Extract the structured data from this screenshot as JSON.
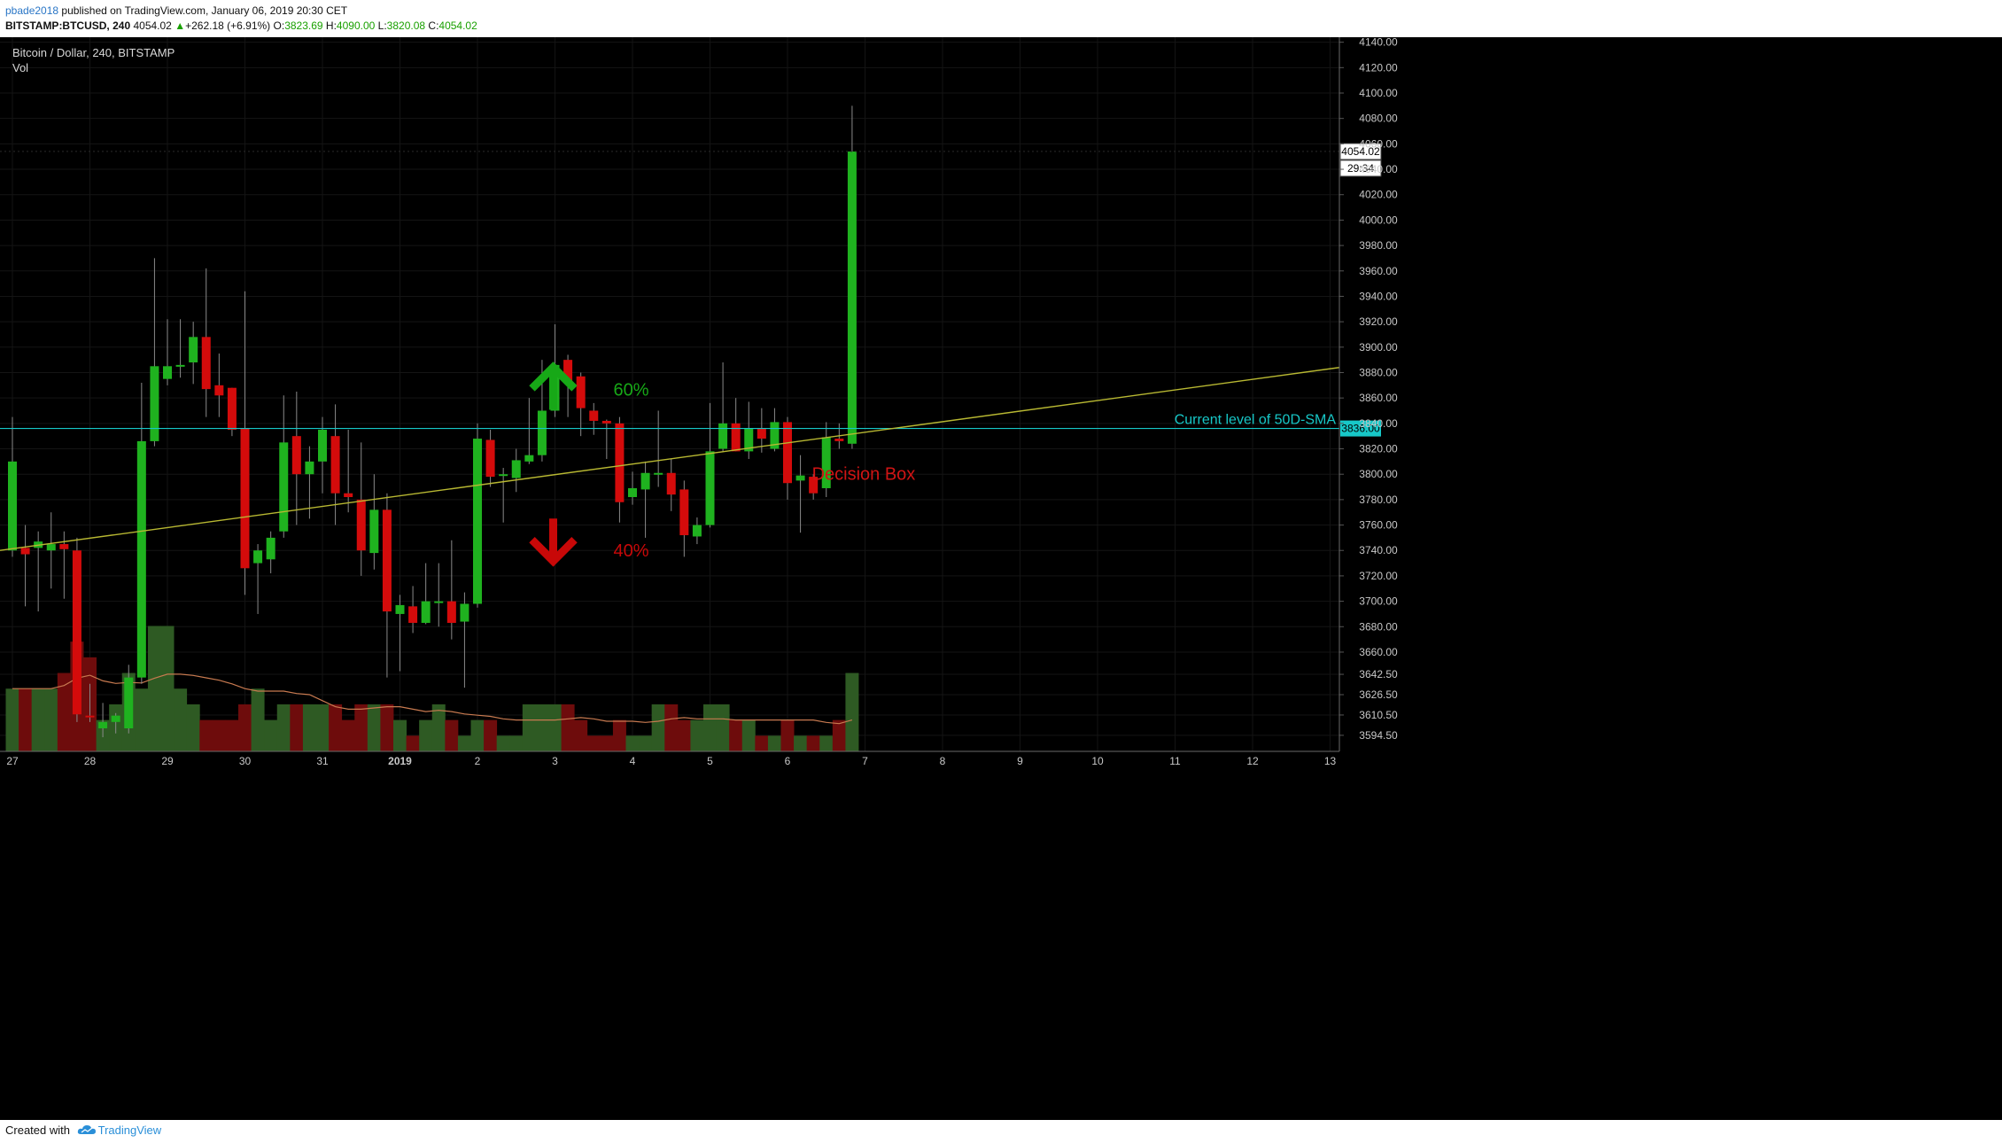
{
  "header": {
    "author": "pbade2018",
    "published_text": "published on TradingView.com, January 06, 2019 20:30 CET",
    "symbol": "BITSTAMP:BTCUSD, 240",
    "last_price": "4054.02",
    "change_arrow": "▲",
    "change": "+262.18 (+6.91%)",
    "o_label": "O:",
    "o_value": "3823.69",
    "h_label": "H:",
    "h_value": "4090.00",
    "l_label": "L:",
    "l_value": "3820.08",
    "c_label": "C:",
    "c_value": "4054.02"
  },
  "legend": {
    "title": "Bitcoin / Dollar, 240, BITSTAMP",
    "volume_label": "Vol"
  },
  "footer": {
    "created_with": "Created with",
    "brand": "TradingView",
    "logo_icon": "tradingview-cloud-icon"
  },
  "colors": {
    "background": "#000000",
    "up": "#1fb21f",
    "down": "#d40b0b",
    "vol_up": "#2e5a23",
    "vol_down": "#6e0c0c",
    "sma_line": "#17c8c8",
    "trend_line": "#b8b832",
    "vol_ma": "#c87a50",
    "axis_text": "#c8c8c8",
    "arrow_up": "#17a817",
    "arrow_down": "#c80808"
  },
  "chart_data": {
    "type": "candlestick",
    "title": "Bitcoin / Dollar, 240, BITSTAMP",
    "interval": "240",
    "y_ticks": [
      3594.5,
      3610.5,
      3626.5,
      3642.5,
      3660.0,
      3680.0,
      3700.0,
      3720.0,
      3740.0,
      3760.0,
      3780.0,
      3800.0,
      3820.0,
      3840.0,
      3860.0,
      3880.0,
      3900.0,
      3920.0,
      3940.0,
      3960.0,
      3980.0,
      4000.0,
      4020.0,
      4040.0,
      4060.0,
      4080.0,
      4100.0,
      4120.0,
      4140.0
    ],
    "x_ticks": [
      "27",
      "28",
      "29",
      "30",
      "31",
      "2019",
      "2",
      "3",
      "4",
      "5",
      "6",
      "7",
      "8",
      "9",
      "10",
      "11",
      "12",
      "13"
    ],
    "price_label": "4054.02",
    "countdown_label": "29:34",
    "sma_label": "3836.00",
    "sma_level": 3836.0,
    "sma_text": "Current level of 50D-SMA",
    "trendline": {
      "from": [
        "27",
        3740
      ],
      "to": [
        "13",
        3884
      ]
    },
    "candles": [
      {
        "o": 3740,
        "h": 3845,
        "l": 3735,
        "c": 3810
      },
      {
        "o": 3742,
        "h": 3760,
        "l": 3696,
        "c": 3737
      },
      {
        "o": 3742,
        "h": 3755,
        "l": 3692,
        "c": 3747
      },
      {
        "o": 3740,
        "h": 3770,
        "l": 3710,
        "c": 3745
      },
      {
        "o": 3745,
        "h": 3755,
        "l": 3702,
        "c": 3741
      },
      {
        "o": 3740,
        "h": 3750,
        "l": 3605,
        "c": 3611
      },
      {
        "o": 3610,
        "h": 3635,
        "l": 3605,
        "c": 3609
      },
      {
        "o": 3600,
        "h": 3620,
        "l": 3593,
        "c": 3605
      },
      {
        "o": 3605,
        "h": 3612,
        "l": 3596,
        "c": 3610
      },
      {
        "o": 3600,
        "h": 3650,
        "l": 3596,
        "c": 3640
      },
      {
        "o": 3640,
        "h": 3872,
        "l": 3635,
        "c": 3826
      },
      {
        "o": 3826,
        "h": 3970,
        "l": 3822,
        "c": 3885
      },
      {
        "o": 3875,
        "h": 3922,
        "l": 3870,
        "c": 3885
      },
      {
        "o": 3885,
        "h": 3922,
        "l": 3876,
        "c": 3886
      },
      {
        "o": 3888,
        "h": 3920,
        "l": 3871,
        "c": 3908
      },
      {
        "o": 3908,
        "h": 3962,
        "l": 3845,
        "c": 3867
      },
      {
        "o": 3870,
        "h": 3895,
        "l": 3845,
        "c": 3862
      },
      {
        "o": 3868,
        "h": 3868,
        "l": 3830,
        "c": 3835
      },
      {
        "o": 3836,
        "h": 3944,
        "l": 3705,
        "c": 3726
      },
      {
        "o": 3730,
        "h": 3745,
        "l": 3690,
        "c": 3740
      },
      {
        "o": 3733,
        "h": 3755,
        "l": 3722,
        "c": 3750
      },
      {
        "o": 3755,
        "h": 3862,
        "l": 3750,
        "c": 3825
      },
      {
        "o": 3830,
        "h": 3865,
        "l": 3760,
        "c": 3800
      },
      {
        "o": 3800,
        "h": 3822,
        "l": 3765,
        "c": 3810
      },
      {
        "o": 3810,
        "h": 3845,
        "l": 3785,
        "c": 3835
      },
      {
        "o": 3830,
        "h": 3855,
        "l": 3760,
        "c": 3785
      },
      {
        "o": 3785,
        "h": 3835,
        "l": 3770,
        "c": 3782
      },
      {
        "o": 3780,
        "h": 3825,
        "l": 3720,
        "c": 3740
      },
      {
        "o": 3738,
        "h": 3800,
        "l": 3725,
        "c": 3772
      },
      {
        "o": 3772,
        "h": 3785,
        "l": 3640,
        "c": 3692
      },
      {
        "o": 3690,
        "h": 3705,
        "l": 3645,
        "c": 3697
      },
      {
        "o": 3696,
        "h": 3712,
        "l": 3675,
        "c": 3683
      },
      {
        "o": 3683,
        "h": 3730,
        "l": 3682,
        "c": 3700
      },
      {
        "o": 3700,
        "h": 3730,
        "l": 3680,
        "c": 3700
      },
      {
        "o": 3700,
        "h": 3748,
        "l": 3670,
        "c": 3683
      },
      {
        "o": 3684,
        "h": 3707,
        "l": 3632,
        "c": 3698
      },
      {
        "o": 3698,
        "h": 3840,
        "l": 3695,
        "c": 3828
      },
      {
        "o": 3827,
        "h": 3835,
        "l": 3790,
        "c": 3798
      },
      {
        "o": 3800,
        "h": 3805,
        "l": 3762,
        "c": 3800
      },
      {
        "o": 3797,
        "h": 3820,
        "l": 3786,
        "c": 3811
      },
      {
        "o": 3810,
        "h": 3860,
        "l": 3808,
        "c": 3815
      },
      {
        "o": 3815,
        "h": 3890,
        "l": 3810,
        "c": 3850
      },
      {
        "o": 3850,
        "h": 3918,
        "l": 3845,
        "c": 3886
      },
      {
        "o": 3890,
        "h": 3894,
        "l": 3845,
        "c": 3872
      },
      {
        "o": 3877,
        "h": 3880,
        "l": 3830,
        "c": 3852
      },
      {
        "o": 3850,
        "h": 3856,
        "l": 3831,
        "c": 3842
      },
      {
        "o": 3842,
        "h": 3843,
        "l": 3812,
        "c": 3840
      },
      {
        "o": 3840,
        "h": 3845,
        "l": 3762,
        "c": 3778
      },
      {
        "o": 3782,
        "h": 3802,
        "l": 3776,
        "c": 3789
      },
      {
        "o": 3788,
        "h": 3810,
        "l": 3750,
        "c": 3801
      },
      {
        "o": 3801,
        "h": 3850,
        "l": 3790,
        "c": 3801
      },
      {
        "o": 3801,
        "h": 3812,
        "l": 3771,
        "c": 3784
      },
      {
        "o": 3788,
        "h": 3795,
        "l": 3735,
        "c": 3752
      },
      {
        "o": 3751,
        "h": 3766,
        "l": 3745,
        "c": 3760
      },
      {
        "o": 3760,
        "h": 3856,
        "l": 3758,
        "c": 3818
      },
      {
        "o": 3820,
        "h": 3888,
        "l": 3818,
        "c": 3840
      },
      {
        "o": 3840,
        "h": 3860,
        "l": 3818,
        "c": 3818
      },
      {
        "o": 3818,
        "h": 3857,
        "l": 3812,
        "c": 3836
      },
      {
        "o": 3836,
        "h": 3852,
        "l": 3817,
        "c": 3828
      },
      {
        "o": 3820,
        "h": 3852,
        "l": 3818,
        "c": 3841
      },
      {
        "o": 3841,
        "h": 3845,
        "l": 3780,
        "c": 3793
      },
      {
        "o": 3795,
        "h": 3815,
        "l": 3754,
        "c": 3799
      },
      {
        "o": 3798,
        "h": 3800,
        "l": 3780,
        "c": 3785
      },
      {
        "o": 3789,
        "h": 3841,
        "l": 3782,
        "c": 3829
      },
      {
        "o": 3828,
        "h": 3840,
        "l": 3820,
        "c": 3826
      },
      {
        "o": 3824,
        "h": 4090,
        "l": 3820,
        "c": 4054
      }
    ],
    "volume": [
      4,
      4,
      4,
      4,
      5,
      7,
      6,
      2,
      3,
      5,
      4,
      8,
      8,
      4,
      3,
      2,
      2,
      2,
      3,
      4,
      2,
      3,
      3,
      3,
      3,
      3,
      2,
      3,
      3,
      3,
      2,
      1,
      2,
      3,
      2,
      1,
      2,
      2,
      1,
      1,
      3,
      3,
      3,
      3,
      2,
      1,
      1,
      2,
      1,
      1,
      3,
      3,
      2,
      2,
      3,
      3,
      2,
      2,
      1,
      1,
      2,
      1,
      1,
      1,
      2,
      5
    ],
    "vol_ylim": [
      0,
      130
    ],
    "annotations": {
      "decision_box_label": "Decision Box",
      "up_label": "60%",
      "down_label": "40%"
    }
  }
}
